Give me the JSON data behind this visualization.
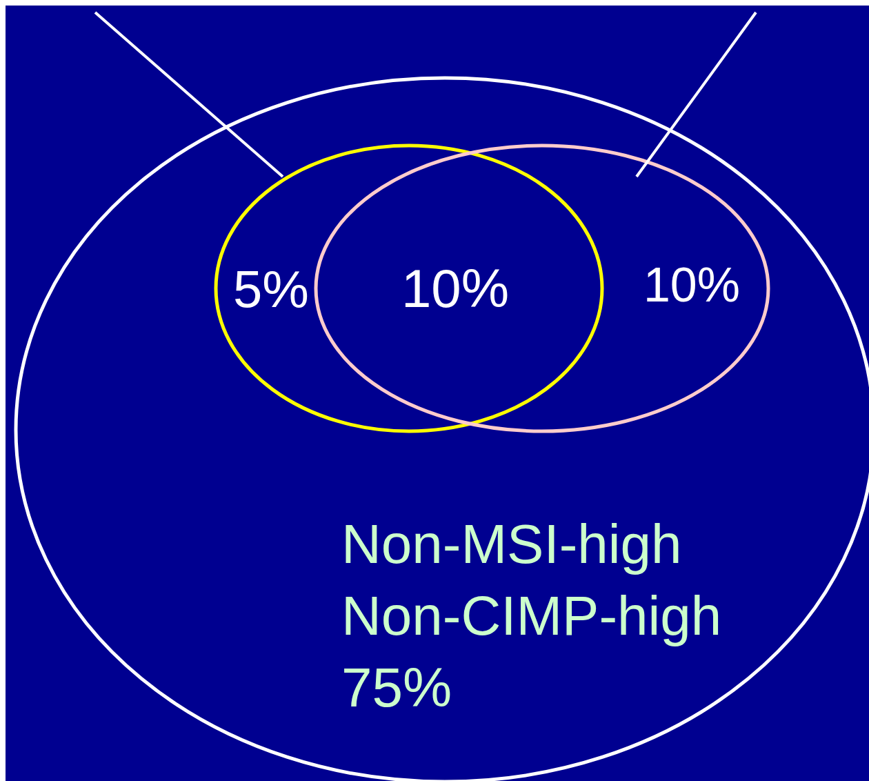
{
  "chart_data": {
    "type": "other",
    "categories": [
      null,
      null,
      null,
      "Non-MSI-high\nNon-CIMP-high"
    ],
    "values": [
      5,
      10,
      10,
      75
    ],
    "value_labels": [
      "5%",
      "10%",
      "10%",
      "75%"
    ],
    "colors": [
      "#ffff00",
      null,
      "#ffcccc",
      "#ffffff"
    ]
  }
}
